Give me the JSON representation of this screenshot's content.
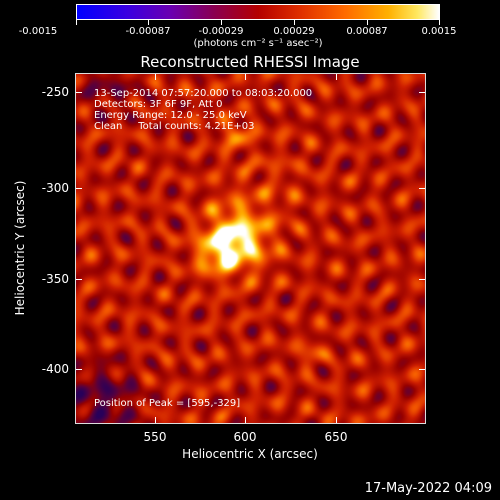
{
  "colorbar": {
    "ticks": [
      "-0.0015",
      "-0.00087",
      "-0.00029",
      "0.00029",
      "0.00087",
      "0.0015"
    ],
    "units_label": "(photons cm⁻² s⁻¹ asec⁻²)"
  },
  "plot": {
    "title": "Reconstructed RHESSI Image",
    "annotations": {
      "time_range": "13-Sep-2014 07:57:20.000 to 08:03:20.000",
      "detectors": "Detectors: 3F 6F 9F, Att 0",
      "energy_range": "Energy Range: 12.0 - 25.0 keV",
      "clean": "Clean     Total counts: 4.21E+03",
      "peak": "Position of Peak = [595,-329]"
    },
    "x_axis": {
      "label": "Heliocentric X (arcsec)",
      "ticks": [
        "550",
        "600",
        "650"
      ]
    },
    "y_axis": {
      "label": "Heliocentric Y (arcsec)",
      "ticks": [
        "-250",
        "-300",
        "-350",
        "-400"
      ]
    }
  },
  "footer": {
    "date": "17-May-2022 04:09"
  }
}
